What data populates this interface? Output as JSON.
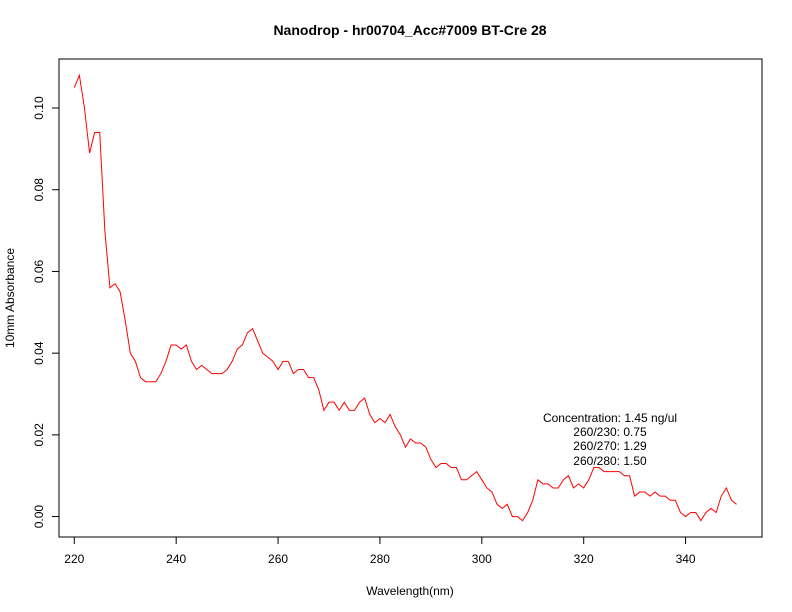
{
  "chart_data": {
    "type": "line",
    "title": "Nanodrop - hr00704_Acc#7009 BT-Cre 28",
    "xlabel": "Wavelength(nm)",
    "ylabel": "10mm Absorbance",
    "xlim": [
      217,
      355
    ],
    "ylim": [
      -0.005,
      0.112
    ],
    "x_ticks": [
      220,
      240,
      260,
      280,
      300,
      320,
      340
    ],
    "x_tick_labels": [
      "220",
      "240",
      "260",
      "280",
      "300",
      "320",
      "340"
    ],
    "y_ticks": [
      0.0,
      0.02,
      0.04,
      0.06,
      0.08,
      0.1
    ],
    "y_tick_labels": [
      "0.00",
      "0.02",
      "0.04",
      "0.06",
      "0.08",
      "0.10"
    ],
    "grid": false,
    "line_color": "#ff0000",
    "annotations": [
      "Concentration: 1.45 ng/ul",
      "260/230: 0.75",
      "260/270: 1.29",
      "260/280: 1.50"
    ],
    "series": [
      {
        "x": [
          220,
          221,
          222,
          223,
          224,
          225,
          226,
          227,
          228,
          229,
          230,
          231,
          232,
          233,
          234,
          235,
          236,
          237,
          238,
          239,
          240,
          241,
          242,
          243,
          244,
          245,
          246,
          247,
          248,
          249,
          250,
          251,
          252,
          253,
          254,
          255,
          256,
          257,
          258,
          259,
          260,
          261,
          262,
          263,
          264,
          265,
          266,
          267,
          268,
          269,
          270,
          271,
          272,
          273,
          274,
          275,
          276,
          277,
          278,
          279,
          280,
          281,
          282,
          283,
          284,
          285,
          286,
          287,
          288,
          289,
          290,
          291,
          292,
          293,
          294,
          295,
          296,
          297,
          298,
          299,
          300,
          301,
          302,
          303,
          304,
          305,
          306,
          307,
          308,
          309,
          310,
          311,
          312,
          313,
          314,
          315,
          316,
          317,
          318,
          319,
          320,
          321,
          322,
          323,
          324,
          325,
          326,
          327,
          328,
          329,
          330,
          331,
          332,
          333,
          334,
          335,
          336,
          337,
          338,
          339,
          340,
          341,
          342,
          343,
          344,
          345,
          346,
          347,
          348,
          349,
          350
        ],
        "y": [
          0.105,
          0.108,
          0.1,
          0.089,
          0.094,
          0.094,
          0.07,
          0.056,
          0.057,
          0.055,
          0.048,
          0.04,
          0.038,
          0.034,
          0.033,
          0.033,
          0.033,
          0.035,
          0.038,
          0.042,
          0.042,
          0.041,
          0.042,
          0.038,
          0.036,
          0.037,
          0.036,
          0.035,
          0.035,
          0.035,
          0.036,
          0.038,
          0.041,
          0.042,
          0.045,
          0.046,
          0.043,
          0.04,
          0.039,
          0.038,
          0.036,
          0.038,
          0.038,
          0.035,
          0.036,
          0.036,
          0.034,
          0.034,
          0.031,
          0.026,
          0.028,
          0.028,
          0.026,
          0.028,
          0.026,
          0.026,
          0.028,
          0.029,
          0.025,
          0.023,
          0.024,
          0.023,
          0.025,
          0.022,
          0.02,
          0.017,
          0.019,
          0.018,
          0.018,
          0.017,
          0.014,
          0.012,
          0.013,
          0.013,
          0.012,
          0.012,
          0.009,
          0.009,
          0.01,
          0.011,
          0.009,
          0.007,
          0.006,
          0.003,
          0.002,
          0.003,
          0.0,
          0.0,
          -0.001,
          0.001,
          0.004,
          0.009,
          0.008,
          0.008,
          0.007,
          0.007,
          0.009,
          0.01,
          0.007,
          0.008,
          0.007,
          0.009,
          0.012,
          0.012,
          0.011,
          0.011,
          0.011,
          0.011,
          0.01,
          0.01,
          0.005,
          0.006,
          0.006,
          0.005,
          0.006,
          0.005,
          0.005,
          0.004,
          0.004,
          0.001,
          0.0,
          0.001,
          0.001,
          -0.001,
          0.001,
          0.002,
          0.001,
          0.005,
          0.007,
          0.004,
          0.003
        ]
      }
    ]
  }
}
